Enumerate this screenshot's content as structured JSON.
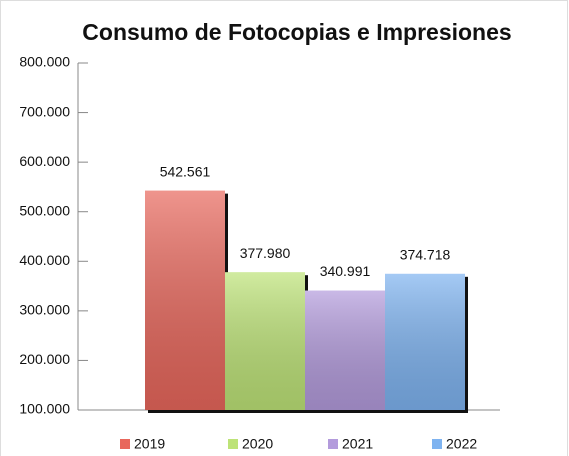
{
  "chart_data": {
    "type": "bar",
    "title": "Consumo de Fotocopias e Impresiones",
    "categories": [
      null
    ],
    "series": [
      {
        "name": "2019",
        "color": "#e8675c",
        "values": [
          542561
        ],
        "value_labels": [
          "542.561"
        ]
      },
      {
        "name": "2020",
        "color": "#bde377",
        "values": [
          377980
        ],
        "value_labels": [
          "377.980"
        ]
      },
      {
        "name": "2021",
        "color": "#b39bdc",
        "values": [
          340991
        ],
        "value_labels": [
          "340.991"
        ]
      },
      {
        "name": "2022",
        "color": "#7eb3f0",
        "values": [
          374718
        ],
        "value_labels": [
          "374.718"
        ]
      }
    ],
    "ylim": [
      100000,
      800000
    ],
    "yticks": [
      {
        "value": 100000,
        "label": "100.000"
      },
      {
        "value": 200000,
        "label": "200.000"
      },
      {
        "value": 300000,
        "label": "300.000"
      },
      {
        "value": 400000,
        "label": "400.000"
      },
      {
        "value": 500000,
        "label": "500.000"
      },
      {
        "value": 600000,
        "label": "600.000"
      },
      {
        "value": 700000,
        "label": "700.000"
      },
      {
        "value": 800000,
        "label": "800.000"
      }
    ],
    "legend": "bottom"
  }
}
